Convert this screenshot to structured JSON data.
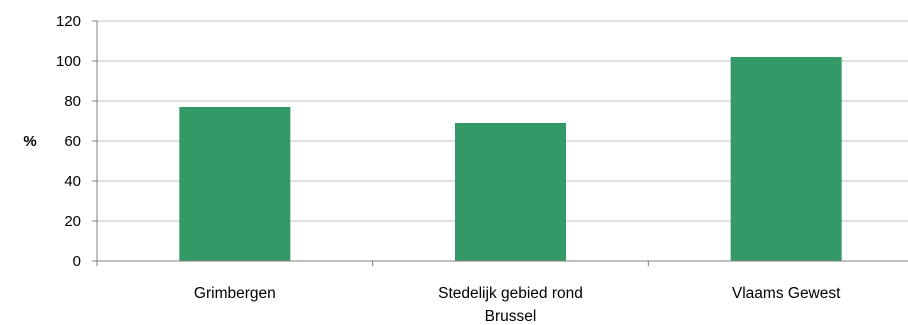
{
  "chart_data": {
    "type": "bar",
    "categories": [
      "Grimbergen",
      "Stedelijk gebied rond Brussel",
      "Vlaams Gewest"
    ],
    "category_lines": [
      [
        "Grimbergen"
      ],
      [
        "Stedelijk gebied rond",
        "Brussel"
      ],
      [
        "Vlaams Gewest"
      ]
    ],
    "values": [
      77,
      69,
      102
    ],
    "ylabel": "%",
    "ylim": [
      0,
      120
    ],
    "yticks": [
      0,
      20,
      40,
      60,
      80,
      100,
      120
    ],
    "grid": true,
    "legend": "none",
    "bar_color": "#339966",
    "grid_color": "#c0c0c0",
    "axis_color": "#808080"
  }
}
